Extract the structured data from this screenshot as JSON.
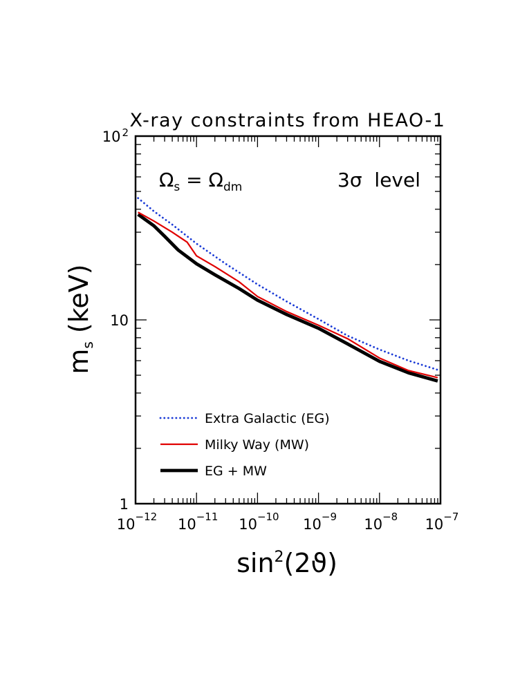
{
  "chart_data": {
    "type": "line",
    "title": "X-ray constraints from HEAO-1",
    "xlabel": "sin²(2ϑ)",
    "ylabel": "mₛ (keV)",
    "x_scale": "log",
    "y_scale": "log",
    "xlim": [
      1e-12,
      1e-07
    ],
    "ylim": [
      1,
      100
    ],
    "grid": false,
    "legend_position": "bottom-left",
    "x_ticks": [
      {
        "base": "10",
        "exp": "−12"
      },
      {
        "base": "10",
        "exp": "−11"
      },
      {
        "base": "10",
        "exp": "−10"
      },
      {
        "base": "10",
        "exp": "−9"
      },
      {
        "base": "10",
        "exp": "−8"
      },
      {
        "base": "10",
        "exp": "−7"
      }
    ],
    "y_ticks": [
      {
        "base": "1",
        "exp": ""
      },
      {
        "base": "10",
        "exp": ""
      },
      {
        "base": "10",
        "exp": "2"
      }
    ],
    "annotations": [
      {
        "text": "Ωs = Ωdm",
        "main": "Ω",
        "sub": "s",
        "eq": " = ",
        "main2": "Ω",
        "sub2": "dm"
      },
      {
        "text": "3σ  level"
      }
    ],
    "series": [
      {
        "name": "Extra Galactic (EG)",
        "color": "#1a3ad6",
        "style": "dotted",
        "x": [
          1.1e-12,
          2e-12,
          4e-12,
          1e-11,
          3e-11,
          1e-10,
          3e-10,
          1e-09,
          3e-09,
          1e-08,
          3e-08,
          9e-08
        ],
        "y": [
          46,
          39,
          33,
          26,
          20.2,
          15.6,
          12.6,
          10.1,
          8.2,
          6.9,
          6.0,
          5.35
        ]
      },
      {
        "name": "Milky Way (MW)",
        "color": "#e00000",
        "style": "solid",
        "x": [
          1.1e-12,
          2e-12,
          4e-12,
          7e-12,
          1e-11,
          2e-11,
          5e-11,
          1e-10,
          3e-10,
          1e-09,
          3e-09,
          1e-08,
          3e-08,
          9e-08
        ],
        "y": [
          38.5,
          34.5,
          30,
          26.5,
          22.3,
          19.5,
          16.1,
          13.4,
          11.1,
          9.35,
          7.9,
          6.2,
          5.3,
          4.85
        ]
      },
      {
        "name": "EG + MW",
        "color": "#000000",
        "style": "thick",
        "x": [
          1.1e-12,
          2e-12,
          3e-12,
          5e-12,
          1e-11,
          2e-11,
          5e-11,
          1e-10,
          3e-10,
          1e-09,
          3e-09,
          1e-08,
          3e-08,
          9e-08
        ],
        "y": [
          37.5,
          32.5,
          28.5,
          24,
          20.2,
          17.6,
          14.8,
          12.8,
          10.7,
          9.0,
          7.4,
          5.95,
          5.15,
          4.65
        ]
      }
    ]
  }
}
